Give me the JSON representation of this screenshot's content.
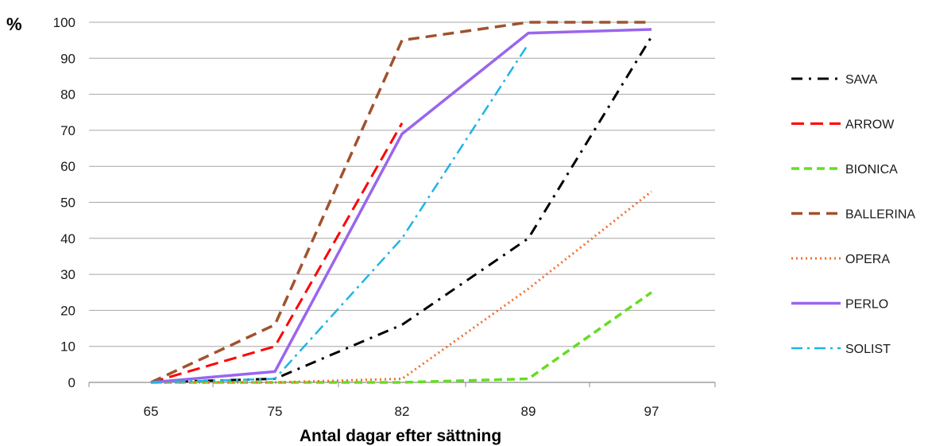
{
  "chart_data": {
    "type": "line",
    "title": "",
    "xlabel": "Antal dagar efter sättning",
    "ylabel": "%",
    "categories": [
      "65",
      "75",
      "82",
      "89",
      "97"
    ],
    "ylim": [
      0,
      100
    ],
    "yticks": [
      0,
      10,
      20,
      30,
      40,
      50,
      60,
      70,
      80,
      90,
      100
    ],
    "grid": "horizontal",
    "legend": "right",
    "series": [
      {
        "name": "SAVA",
        "values": [
          0,
          1,
          16,
          40,
          96
        ],
        "color": "#000000",
        "dash": "14,8,3,8",
        "width": 3
      },
      {
        "name": "ARROW",
        "values": [
          0,
          10,
          72,
          null,
          null
        ],
        "color": "#ff0000",
        "dash": "16,8",
        "width": 3
      },
      {
        "name": "BIONICA",
        "values": [
          0,
          0,
          0,
          1,
          25
        ],
        "color": "#66dd22",
        "dash": "10,6",
        "width": 3.5
      },
      {
        "name": "BALLERINA",
        "values": [
          0,
          16,
          95,
          100,
          100
        ],
        "color": "#a0522d",
        "dash": "14,8",
        "width": 3.5
      },
      {
        "name": "OPERA",
        "values": [
          0,
          0,
          1,
          26,
          53
        ],
        "color": "#f07030",
        "dash": "2,4",
        "width": 3
      },
      {
        "name": "PERLO",
        "values": [
          0,
          3,
          69,
          97,
          98
        ],
        "color": "#9966ee",
        "dash": "",
        "width": 3.5
      },
      {
        "name": "SOLIST",
        "values": [
          0,
          1,
          40,
          94,
          null
        ],
        "color": "#1eb4e6",
        "dash": "14,6,3,6",
        "width": 2.5
      }
    ]
  }
}
